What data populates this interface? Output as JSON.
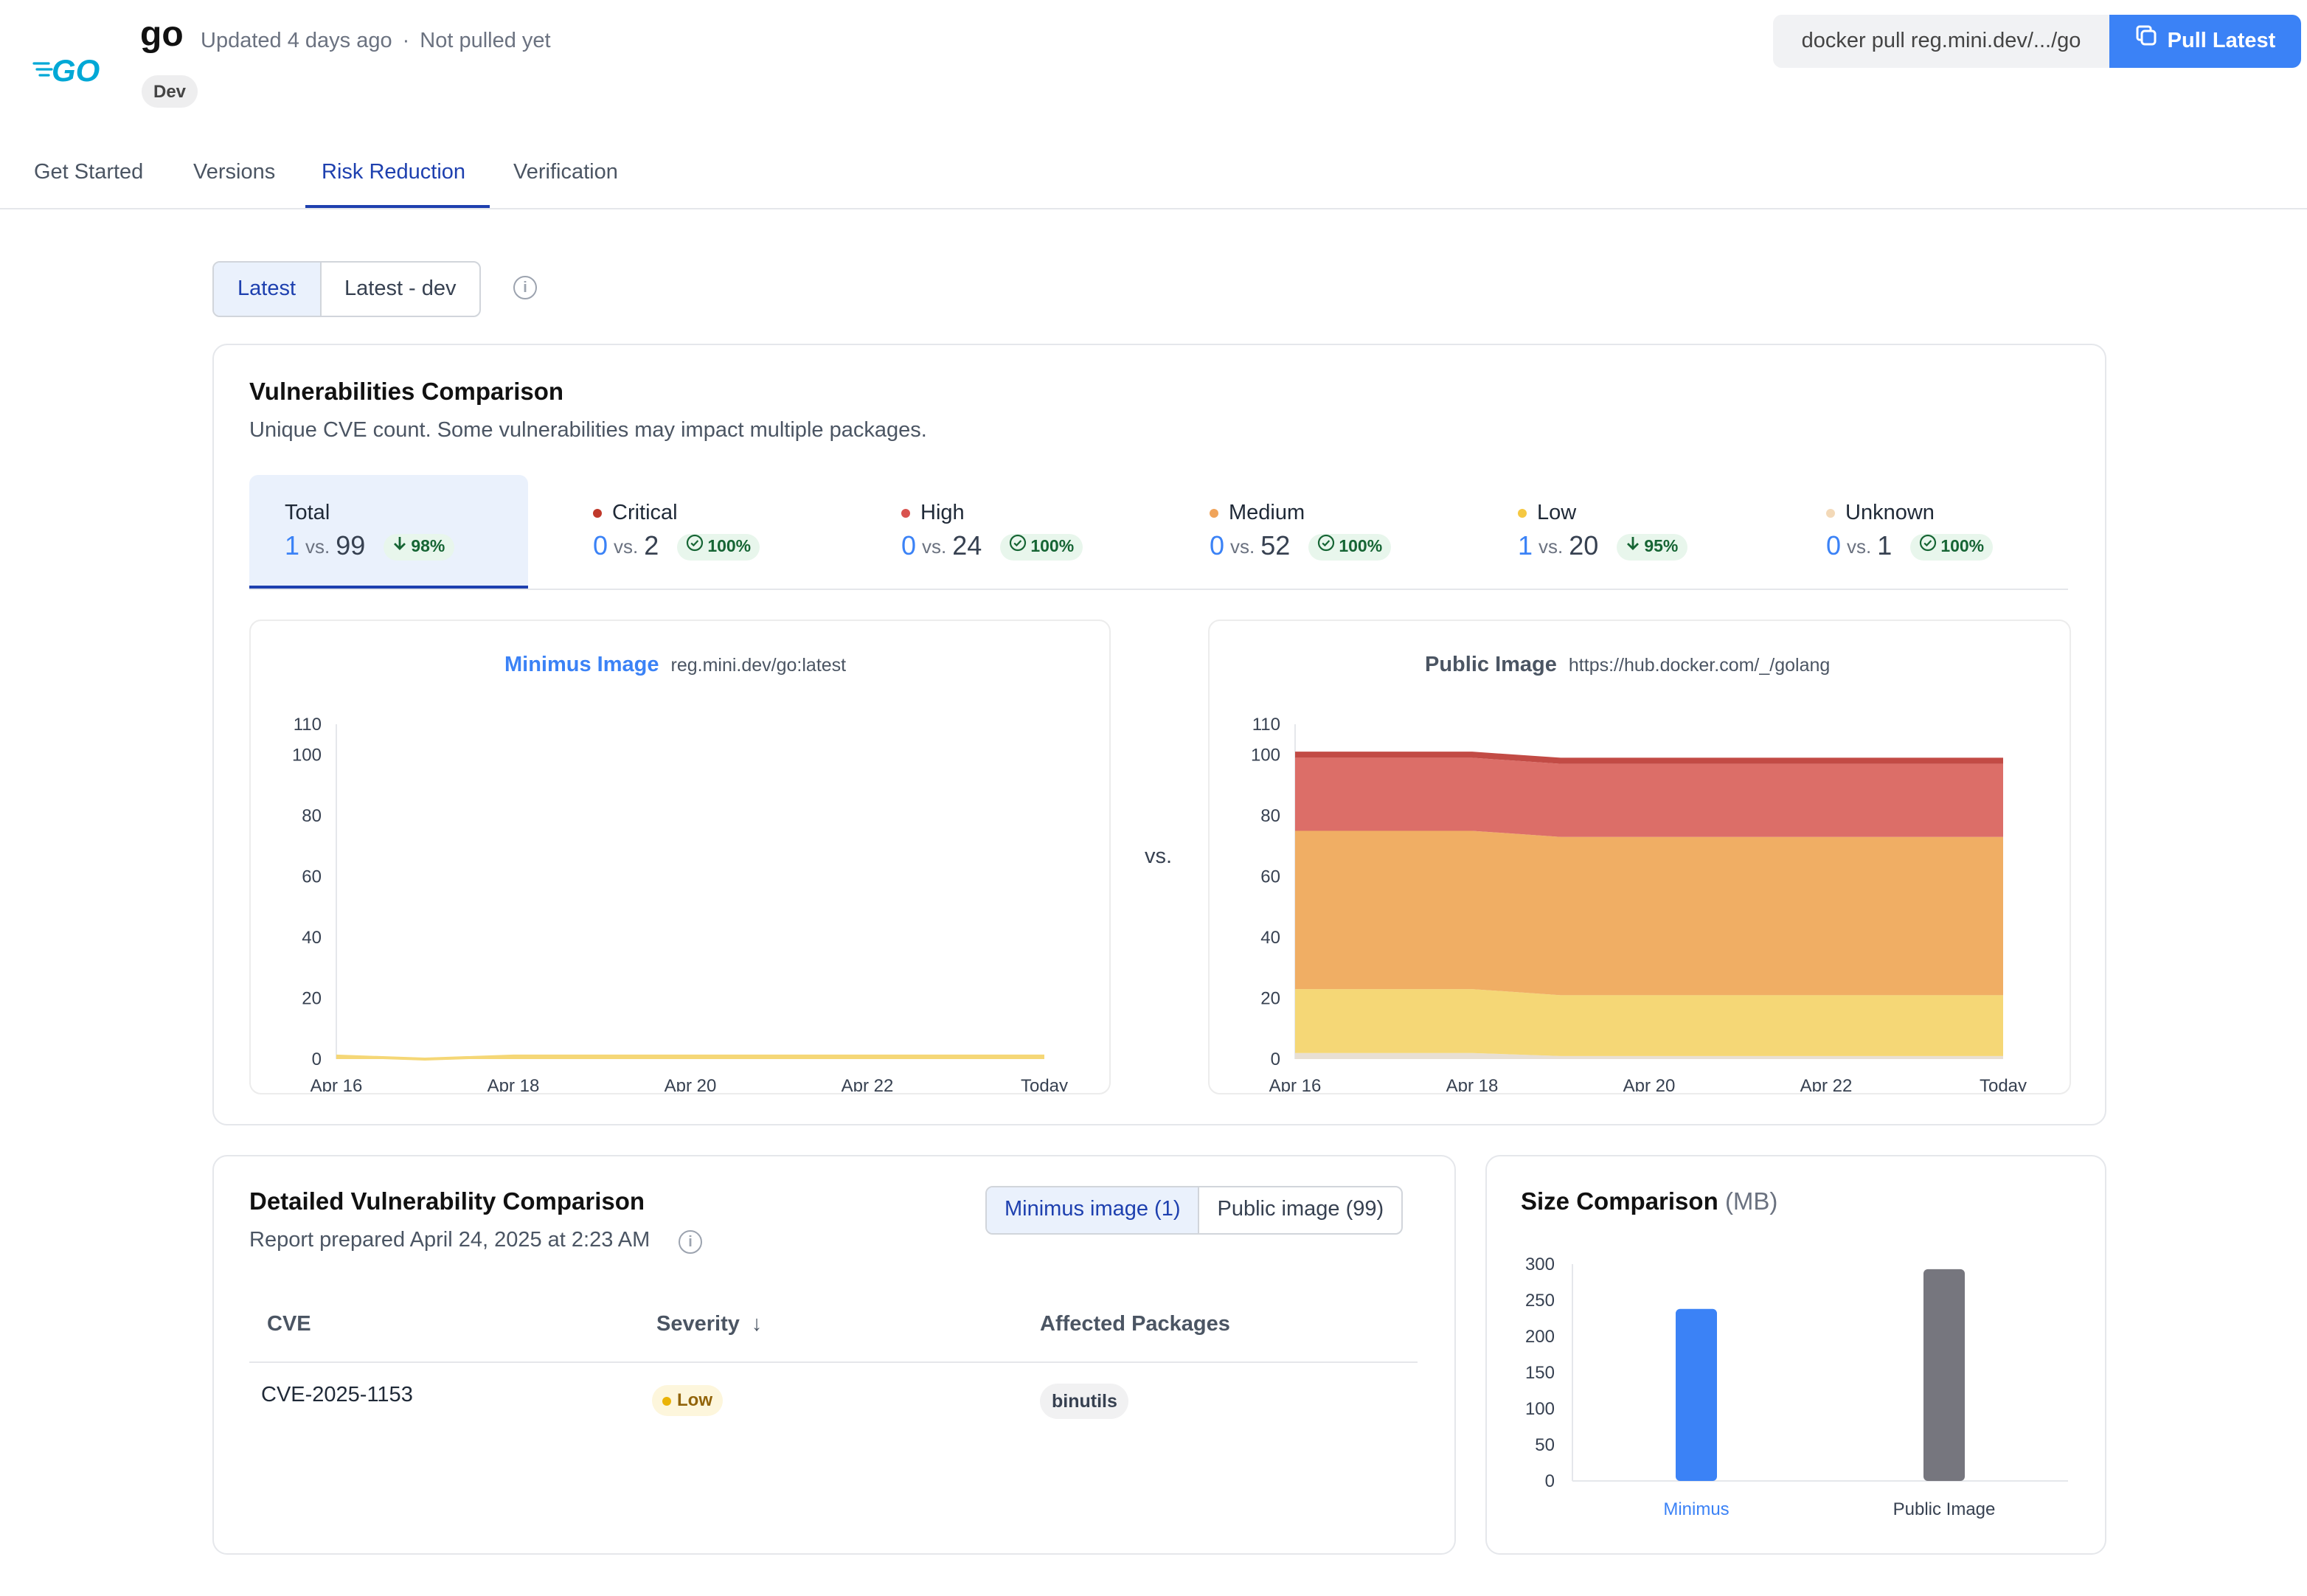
{
  "header": {
    "title": "go",
    "updated": "Updated 4 days ago",
    "separator": "·",
    "pulled": "Not pulled yet",
    "badge": "Dev",
    "pull_command": "docker pull reg.mini.dev/.../go",
    "pull_button": "Pull Latest",
    "logo_text": "GO"
  },
  "tabs": [
    "Get Started",
    "Versions",
    "Risk Reduction",
    "Verification"
  ],
  "active_tab": "Risk Reduction",
  "version_toggle": {
    "options": [
      "Latest",
      "Latest - dev"
    ],
    "selected": "Latest",
    "info": "i"
  },
  "vuln": {
    "title": "Vulnerabilities Comparison",
    "subtitle": "Unique CVE count. Some vulnerabilities may impact multiple packages.",
    "vs_word": "vs.",
    "stats": [
      {
        "label": "Total",
        "minimus": "1",
        "public": "99",
        "reduction": "98%",
        "icon": "arrow-down",
        "dot": null
      },
      {
        "label": "Critical",
        "minimus": "0",
        "public": "2",
        "reduction": "100%",
        "icon": "check-circle",
        "dot": "#c0392b"
      },
      {
        "label": "High",
        "minimus": "0",
        "public": "24",
        "reduction": "100%",
        "icon": "check-circle",
        "dot": "#d9534f"
      },
      {
        "label": "Medium",
        "minimus": "0",
        "public": "52",
        "reduction": "100%",
        "icon": "check-circle",
        "dot": "#f0a45a"
      },
      {
        "label": "Low",
        "minimus": "1",
        "public": "20",
        "reduction": "95%",
        "icon": "arrow-down",
        "dot": "#f5c842"
      },
      {
        "label": "Unknown",
        "minimus": "0",
        "public": "1",
        "reduction": "100%",
        "icon": "check-circle",
        "dot": "#f3d9b8"
      }
    ],
    "vs_between": "vs."
  },
  "chart_data": [
    {
      "type": "area",
      "title": "Minimus Image",
      "subtitle": "reg.mini.dev/go:latest",
      "x": [
        "Apr 16",
        "Apr 17",
        "Apr 18",
        "Apr 19",
        "Apr 20",
        "Apr 21",
        "Apr 22",
        "Apr 23",
        "Today"
      ],
      "x_tick_labels": [
        "Apr 16",
        "Apr 18",
        "Apr 20",
        "Apr 22",
        "Today"
      ],
      "ylim": [
        0,
        110
      ],
      "y_ticks": [
        0,
        20,
        40,
        60,
        80,
        100,
        110
      ],
      "series": [
        {
          "name": "Low",
          "color": "#f5d776",
          "values": [
            1,
            0,
            1,
            1,
            1,
            1,
            1,
            1,
            1
          ]
        }
      ]
    },
    {
      "type": "area",
      "title": "Public Image",
      "subtitle": "https://hub.docker.com/_/golang",
      "x": [
        "Apr 16",
        "Apr 17",
        "Apr 18",
        "Apr 19",
        "Apr 20",
        "Apr 21",
        "Apr 22",
        "Apr 23",
        "Today"
      ],
      "x_tick_labels": [
        "Apr 16",
        "Apr 18",
        "Apr 20",
        "Apr 22",
        "Today"
      ],
      "ylim": [
        0,
        110
      ],
      "y_ticks": [
        0,
        20,
        40,
        60,
        80,
        100,
        110
      ],
      "stacked": true,
      "series": [
        {
          "name": "Unknown",
          "color": "#e8dfd3",
          "values": [
            2,
            2,
            2,
            1,
            1,
            1,
            1,
            1,
            1
          ]
        },
        {
          "name": "Low",
          "color": "#f5d776",
          "values": [
            21,
            21,
            21,
            20,
            20,
            20,
            20,
            20,
            20
          ]
        },
        {
          "name": "Medium",
          "color": "#f0ae64",
          "values": [
            52,
            52,
            52,
            52,
            52,
            52,
            52,
            52,
            52
          ]
        },
        {
          "name": "High",
          "color": "#dc6e68",
          "values": [
            24,
            24,
            24,
            24,
            24,
            24,
            24,
            24,
            24
          ]
        },
        {
          "name": "Critical",
          "color": "#c24b45",
          "values": [
            2,
            2,
            2,
            2,
            2,
            2,
            2,
            2,
            2
          ]
        }
      ]
    },
    {
      "type": "bar",
      "title": "Size Comparison",
      "unit": "(MB)",
      "categories": [
        "Minimus",
        "Public Image"
      ],
      "values": [
        238,
        293
      ],
      "colors": [
        "#3b82f6",
        "#76767e"
      ],
      "ylim": [
        0,
        300
      ],
      "y_ticks": [
        0,
        50,
        100,
        150,
        200,
        250,
        300
      ]
    }
  ],
  "detailed": {
    "title": "Detailed Vulnerability Comparison",
    "report": "Report prepared April 24, 2025 at 2:23 AM",
    "toggle": [
      "Minimus image (1)",
      "Public image (99)"
    ],
    "columns": [
      "CVE",
      "Severity",
      "Affected Packages"
    ],
    "sort_icon": "↓",
    "rows": [
      {
        "cve": "CVE-2025-1153",
        "severity": "Low",
        "package": "binutils"
      }
    ]
  }
}
